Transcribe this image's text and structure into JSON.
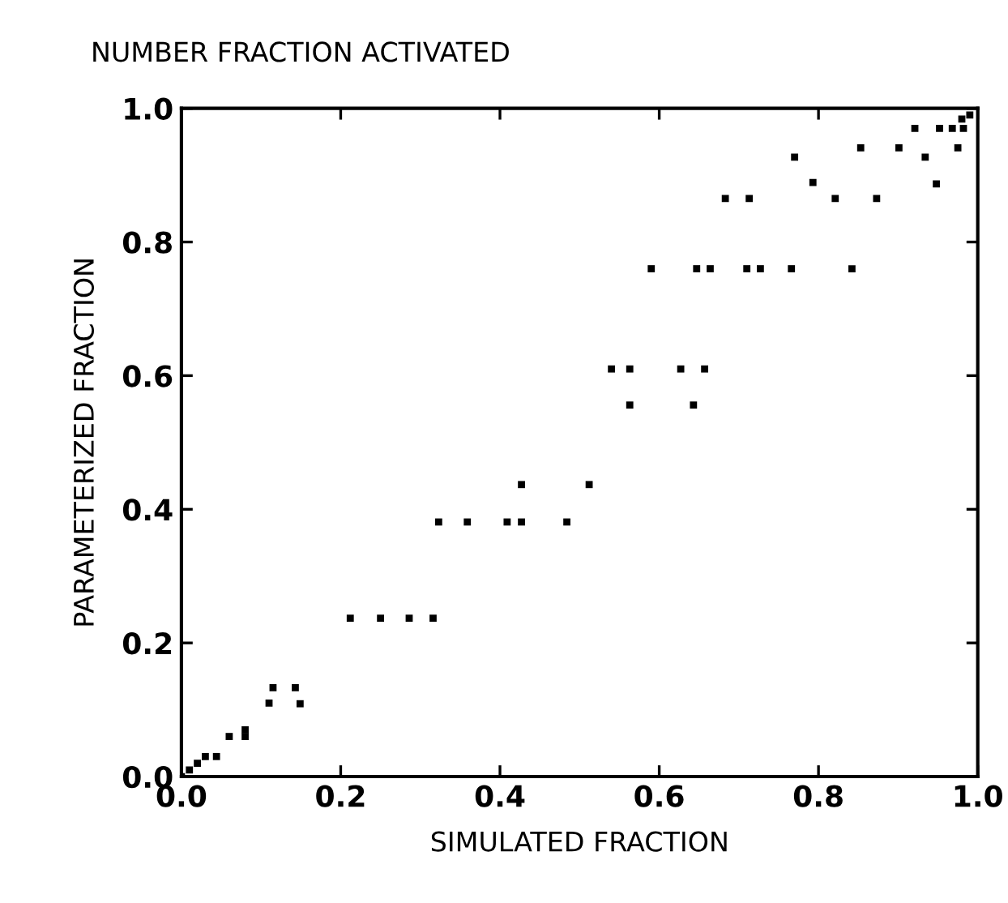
{
  "chart_data": {
    "type": "scatter",
    "title": "NUMBER FRACTION ACTIVATED",
    "xlabel": "SIMULATED FRACTION",
    "ylabel": "PARAMETERIZED FRACTION",
    "x": [
      0.0,
      0.01,
      0.02,
      0.03,
      0.044,
      0.06,
      0.08,
      0.08,
      0.11,
      0.115,
      0.143,
      0.149,
      0.212,
      0.25,
      0.286,
      0.316,
      0.323,
      0.359,
      0.409,
      0.427,
      0.427,
      0.484,
      0.512,
      0.54,
      0.563,
      0.563,
      0.627,
      0.657,
      0.643,
      0.59,
      0.647,
      0.664,
      0.71,
      0.727,
      0.766,
      0.842,
      0.683,
      0.713,
      0.821,
      0.873,
      0.793,
      0.77,
      0.853,
      0.901,
      0.934,
      0.948,
      0.921,
      0.952,
      0.968,
      0.982,
      0.975,
      0.98,
      0.99
    ],
    "values": [
      0.0,
      0.01,
      0.02,
      0.03,
      0.03,
      0.06,
      0.07,
      0.06,
      0.11,
      0.133,
      0.133,
      0.109,
      0.237,
      0.237,
      0.237,
      0.237,
      0.381,
      0.381,
      0.381,
      0.381,
      0.437,
      0.381,
      0.437,
      0.61,
      0.61,
      0.556,
      0.61,
      0.61,
      0.556,
      0.76,
      0.76,
      0.76,
      0.76,
      0.76,
      0.76,
      0.76,
      0.865,
      0.865,
      0.865,
      0.865,
      0.889,
      0.927,
      0.941,
      0.941,
      0.927,
      0.887,
      0.97,
      0.97,
      0.97,
      0.97,
      0.941,
      0.984,
      0.99
    ],
    "color": "#000000",
    "marker": "square",
    "grid": false,
    "legend": false,
    "xlim": [
      0,
      1
    ],
    "ylim": [
      0,
      1
    ],
    "xticks": [
      {
        "value": 0,
        "label": "0.0"
      },
      0.2,
      0.4,
      0.6,
      0.8,
      {
        "value": 1,
        "label": "1.0"
      }
    ],
    "yticks": [
      {
        "value": 0,
        "label": "0.0"
      },
      0.2,
      0.4,
      0.6,
      0.8,
      {
        "value": 1,
        "label": "1.0"
      }
    ]
  }
}
